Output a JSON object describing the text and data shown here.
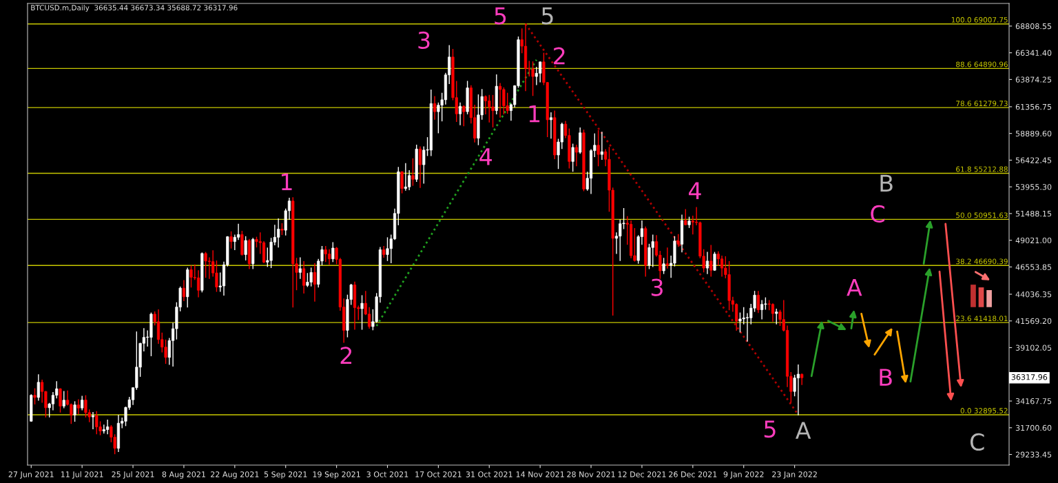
{
  "chart_data": {
    "type": "candlestick",
    "title": "BTCUSD.m,Daily  36635.44 36673.34 35688.72 36317.96",
    "colors": [
      "#ffffff",
      "#ff0000",
      "#ffffff",
      "#ff0000",
      "#ff0000",
      "#ffffff",
      "#ffffff",
      "#ffffff",
      "#ff0000",
      "#ffffff",
      "#ff0000",
      "#ff0000",
      "#ffffff",
      "#ff0000",
      "#ffffff",
      "#ff0000",
      "#ff0000",
      "#ffffff",
      "#ff0000",
      "#ff0000",
      "#ffffff",
      "#ffffff",
      "#ff0000",
      "#ff0000",
      "#ffffff",
      "#ffffff",
      "#ffffff",
      "#ffffff",
      "#ffffff",
      "#ffffff",
      "#ffffff",
      "#ffffff",
      "#ffffff",
      "#ffffff",
      "#ff0000",
      "#ff0000",
      "#ff0000",
      "#ff0000",
      "#ffffff",
      "#ffffff",
      "#ffffff",
      "#ffffff",
      "#ff0000",
      "#ffffff",
      "#ff0000",
      "#ff0000",
      "#ff0000",
      "#ffffff",
      "#ff0000",
      "#ff0000",
      "#ff0000",
      "#ff0000",
      "#ffffff",
      "#ffffff",
      "#ffffff",
      "#ff0000",
      "#ffffff",
      "#ffffff",
      "#ff0000",
      "#ffffff",
      "#ff0000",
      "#ffffff",
      "#ff0000",
      "#ff0000",
      "#ff0000",
      "#ffffff",
      "#ffffff",
      "#ffffff",
      "#ffffff",
      "#ff0000",
      "#ffffff",
      "#ffffff",
      "#ff0000",
      "#ff0000",
      "#ffffff",
      "#ff0000",
      "#ffffff",
      "#ffffff",
      "#ff0000",
      "#ffffff",
      "#ffffff",
      "#ff0000",
      "#ff0000",
      "#ffffff",
      "#ff0000",
      "#ff0000",
      "#ff0000",
      "#ffffff",
      "#ffffff",
      "#ff0000",
      "#ff0000",
      "#ffffff",
      "#ff0000",
      "#ff0000",
      "#ffffff",
      "#ffffff",
      "#ffffff",
      "#ff0000",
      "#ffffff",
      "#ffffff",
      "#ffffff",
      "#ffffff",
      "#ff0000",
      "#ffffff",
      "#ffffff",
      "#ff0000",
      "#ffffff",
      "#ff0000",
      "#ffffff",
      "#ffffff",
      "#ffffff",
      "#ff0000",
      "#ffffff",
      "#ffffff",
      "#ffffff",
      "#ffffff",
      "#ff0000",
      "#ff0000",
      "#ffffff",
      "#ff0000",
      "#ffffff",
      "#ff0000",
      "#ff0000",
      "#ffffff",
      "#ffffff",
      "#ff0000",
      "#ff0000",
      "#ff0000",
      "#ffffff",
      "#ff0000",
      "#ff0000",
      "#ff0000",
      "#ffffff",
      "#ffffff",
      "#ffffff",
      "#ff0000",
      "#ff0000",
      "#ff0000",
      "#ff0000",
      "#ffffff",
      "#ffffff",
      "#ff0000",
      "#ff0000",
      "#ffffff",
      "#ff0000",
      "#ffffff",
      "#ffffff",
      "#ff0000",
      "#ff0000",
      "#ffffff",
      "#ff0000",
      "#ffffff",
      "#ff0000",
      "#ffffff",
      "#ffffff",
      "#ffffff",
      "#ff0000",
      "#ffffff",
      "#ff0000",
      "#ff0000",
      "#ff0000",
      "#ffffff",
      "#ffffff",
      "#ffffff",
      "#ff0000",
      "#ff0000",
      "#ff0000",
      "#ffffff",
      "#ffffff",
      "#ff0000",
      "#ffffff",
      "#ffffff",
      "#ff0000",
      "#ff0000",
      "#ffffff",
      "#ff0000",
      "#ffffff",
      "#ffffff",
      "#ff0000",
      "#ffffff",
      "#ff0000",
      "#ffffff",
      "#ff0000",
      "#ff0000",
      "#ff0000",
      "#ff0000",
      "#ffffff",
      "#ff0000",
      "#ffffff",
      "#ff0000",
      "#ff0000",
      "#ff0000",
      "#ff0000",
      "#ff0000",
      "#ff0000",
      "#ffffff",
      "#ffffff",
      "#ffffff",
      "#ffffff",
      "#ffffff",
      "#ff0000",
      "#ffffff",
      "#ffffff",
      "#ff0000",
      "#ff0000",
      "#ffffff",
      "#ff0000",
      "#ff0000",
      "#ff0000",
      "#ff0000",
      "#ffffff",
      "#ffffff",
      "#ff0000"
    ],
    "x": [
      "2021-06-27",
      "2021-06-28",
      "2021-06-29",
      "2021-06-30",
      "2021-07-01",
      "2021-07-02",
      "2021-07-03",
      "2021-07-04",
      "2021-07-05",
      "2021-07-06",
      "2021-07-07",
      "2021-07-08",
      "2021-07-09",
      "2021-07-10",
      "2021-07-11",
      "2021-07-12",
      "2021-07-13",
      "2021-07-14",
      "2021-07-15",
      "2021-07-16",
      "2021-07-17",
      "2021-07-18",
      "2021-07-19",
      "2021-07-20",
      "2021-07-21",
      "2021-07-22",
      "2021-07-23",
      "2021-07-24",
      "2021-07-25",
      "2021-07-26",
      "2021-07-27",
      "2021-07-28",
      "2021-07-29",
      "2021-07-30",
      "2021-07-31",
      "2021-08-01",
      "2021-08-02",
      "2021-08-03",
      "2021-08-04",
      "2021-08-05",
      "2021-08-06",
      "2021-08-07",
      "2021-08-08",
      "2021-08-09",
      "2021-08-10",
      "2021-08-11",
      "2021-08-12",
      "2021-08-13",
      "2021-08-14",
      "2021-08-15",
      "2021-08-16",
      "2021-08-17",
      "2021-08-18",
      "2021-08-19",
      "2021-08-20",
      "2021-08-21",
      "2021-08-22",
      "2021-08-23",
      "2021-08-24",
      "2021-08-25",
      "2021-08-26",
      "2021-08-27",
      "2021-08-28",
      "2021-08-29",
      "2021-08-30",
      "2021-08-31",
      "2021-09-01",
      "2021-09-02",
      "2021-09-03",
      "2021-09-04",
      "2021-09-05",
      "2021-09-06",
      "2021-09-07",
      "2021-09-08",
      "2021-09-09",
      "2021-09-10",
      "2021-09-11",
      "2021-09-12",
      "2021-09-13",
      "2021-09-14",
      "2021-09-15",
      "2021-09-16",
      "2021-09-17",
      "2021-09-18",
      "2021-09-19",
      "2021-09-20",
      "2021-09-21",
      "2021-09-22",
      "2021-09-23",
      "2021-09-24",
      "2021-09-25",
      "2021-09-26",
      "2021-09-27",
      "2021-09-28",
      "2021-09-29",
      "2021-09-30",
      "2021-10-01",
      "2021-10-02",
      "2021-10-03",
      "2021-10-04",
      "2021-10-05",
      "2021-10-06",
      "2021-10-07",
      "2021-10-08",
      "2021-10-09",
      "2021-10-10",
      "2021-10-11",
      "2021-10-12",
      "2021-10-13",
      "2021-10-14",
      "2021-10-15",
      "2021-10-16",
      "2021-10-17",
      "2021-10-18",
      "2021-10-19",
      "2021-10-20",
      "2021-10-21",
      "2021-10-22",
      "2021-10-23",
      "2021-10-24",
      "2021-10-25",
      "2021-10-26",
      "2021-10-27",
      "2021-10-28",
      "2021-10-29",
      "2021-10-30",
      "2021-10-31",
      "2021-11-01",
      "2021-11-02",
      "2021-11-03",
      "2021-11-04",
      "2021-11-05",
      "2021-11-06",
      "2021-11-07",
      "2021-11-08",
      "2021-11-09",
      "2021-11-10",
      "2021-11-11",
      "2021-11-12",
      "2021-11-13",
      "2021-11-14",
      "2021-11-15",
      "2021-11-16",
      "2021-11-17",
      "2021-11-18",
      "2021-11-19",
      "2021-11-20",
      "2021-11-21",
      "2021-11-22",
      "2021-11-23",
      "2021-11-24",
      "2021-11-25",
      "2021-11-26",
      "2021-11-27",
      "2021-11-28",
      "2021-11-29",
      "2021-11-30",
      "2021-12-01",
      "2021-12-02",
      "2021-12-03",
      "2021-12-04",
      "2021-12-05",
      "2021-12-06",
      "2021-12-07",
      "2021-12-08",
      "2021-12-09",
      "2021-12-10",
      "2021-12-11",
      "2021-12-12",
      "2021-12-13",
      "2021-12-14",
      "2021-12-15",
      "2021-12-16",
      "2021-12-17",
      "2021-12-18",
      "2021-12-19",
      "2021-12-20",
      "2021-12-21",
      "2021-12-22",
      "2021-12-23",
      "2021-12-24",
      "2021-12-25",
      "2021-12-26",
      "2021-12-27",
      "2021-12-28",
      "2021-12-29",
      "2021-12-30",
      "2021-12-31",
      "2022-01-01",
      "2022-01-02",
      "2022-01-03",
      "2022-01-04",
      "2022-01-05",
      "2022-01-06",
      "2022-01-07",
      "2022-01-08",
      "2022-01-09",
      "2022-01-10",
      "2022-01-11",
      "2022-01-12",
      "2022-01-13",
      "2022-01-14",
      "2022-01-15",
      "2022-01-16",
      "2022-01-17",
      "2022-01-18",
      "2022-01-19",
      "2022-01-20",
      "2022-01-21",
      "2022-01-22",
      "2022-01-23",
      "2022-01-24",
      "2022-01-25"
    ],
    "ohlc": [
      [
        32300,
        34750,
        32300,
        34700
      ],
      [
        34700,
        35300,
        33900,
        34500
      ],
      [
        34500,
        36600,
        34250,
        35900
      ],
      [
        35900,
        36100,
        34050,
        35050
      ],
      [
        35050,
        35050,
        32700,
        33550
      ],
      [
        33550,
        33950,
        32700,
        33900
      ],
      [
        33900,
        34950,
        33350,
        34700
      ],
      [
        34700,
        35950,
        34450,
        35300
      ],
      [
        35300,
        35300,
        33150,
        33700
      ],
      [
        33700,
        35050,
        33550,
        34250
      ],
      [
        34250,
        35100,
        33800,
        33850
      ],
      [
        33850,
        33900,
        32100,
        32880
      ],
      [
        32880,
        34100,
        32300,
        33810
      ],
      [
        33810,
        34280,
        33000,
        33520
      ],
      [
        33520,
        34600,
        33350,
        34260
      ],
      [
        34260,
        34660,
        32700,
        33100
      ],
      [
        33100,
        33350,
        32250,
        32700
      ],
      [
        32700,
        33100,
        31600,
        32820
      ],
      [
        32820,
        33180,
        31150,
        31780
      ],
      [
        31780,
        32250,
        31050,
        31400
      ],
      [
        31400,
        31950,
        31200,
        31530
      ],
      [
        31530,
        32400,
        31150,
        31790
      ],
      [
        31790,
        31900,
        30400,
        30830
      ],
      [
        30830,
        31050,
        29300,
        29800
      ],
      [
        29800,
        32850,
        29500,
        32120
      ],
      [
        32120,
        32600,
        31700,
        32300
      ],
      [
        32300,
        33600,
        31900,
        33580
      ],
      [
        33580,
        34500,
        33400,
        34280
      ],
      [
        34280,
        35400,
        33850,
        35400
      ],
      [
        35400,
        40550,
        35250,
        37300
      ],
      [
        37300,
        39500,
        36450,
        39500
      ],
      [
        39500,
        40850,
        38800,
        40050
      ],
      [
        40050,
        40650,
        39250,
        40050
      ],
      [
        40050,
        42300,
        38350,
        42200
      ],
      [
        42200,
        42400,
        41200,
        41500
      ],
      [
        41500,
        42600,
        39500,
        39850
      ],
      [
        39850,
        40450,
        38700,
        39150
      ],
      [
        39150,
        39800,
        37650,
        38200
      ],
      [
        38200,
        39950,
        37550,
        39750
      ],
      [
        39750,
        41350,
        37400,
        40850
      ],
      [
        40850,
        43250,
        39900,
        42850
      ],
      [
        42850,
        44700,
        42500,
        44600
      ],
      [
        44600,
        45300,
        43450,
        43800
      ],
      [
        43800,
        46450,
        42850,
        46300
      ],
      [
        46300,
        46650,
        44700,
        45600
      ],
      [
        45600,
        46750,
        45400,
        45550
      ],
      [
        45550,
        46200,
        43800,
        44400
      ],
      [
        44400,
        47850,
        44250,
        47800
      ],
      [
        47800,
        47900,
        45600,
        47100
      ],
      [
        47100,
        47400,
        45500,
        47050
      ],
      [
        47050,
        48050,
        45700,
        46000
      ],
      [
        46000,
        47100,
        44300,
        44700
      ],
      [
        44700,
        46000,
        44300,
        44800
      ],
      [
        44800,
        47000,
        43950,
        46750
      ],
      [
        46750,
        49350,
        46650,
        49350
      ],
      [
        49350,
        49800,
        48300,
        48900
      ],
      [
        48900,
        49500,
        48150,
        49300
      ],
      [
        49300,
        50500,
        49100,
        49550
      ],
      [
        49550,
        49850,
        47650,
        47700
      ],
      [
        47700,
        49350,
        47200,
        49000
      ],
      [
        49000,
        49100,
        46400,
        46850
      ],
      [
        46850,
        49200,
        46400,
        49100
      ],
      [
        49100,
        49300,
        48400,
        48900
      ],
      [
        48900,
        49700,
        47800,
        48800
      ],
      [
        48800,
        48900,
        46950,
        47000
      ],
      [
        47000,
        48300,
        46600,
        47150
      ],
      [
        47150,
        49200,
        46500,
        48850
      ],
      [
        48850,
        50400,
        48600,
        49300
      ],
      [
        49300,
        51000,
        48400,
        50050
      ],
      [
        50050,
        50550,
        49550,
        49950
      ],
      [
        49950,
        51900,
        49500,
        51750
      ],
      [
        51750,
        52900,
        50950,
        52650
      ],
      [
        52650,
        52950,
        42850,
        46850
      ],
      [
        46850,
        47350,
        44450,
        46050
      ],
      [
        46050,
        47400,
        45500,
        46400
      ],
      [
        46400,
        47050,
        44150,
        44850
      ],
      [
        44850,
        45950,
        44750,
        45150
      ],
      [
        45150,
        46450,
        44800,
        46050
      ],
      [
        46050,
        46850,
        43400,
        44950
      ],
      [
        44950,
        47250,
        44700,
        47100
      ],
      [
        47100,
        48450,
        46750,
        48150
      ],
      [
        48150,
        48450,
        47050,
        47750
      ],
      [
        47750,
        48150,
        46800,
        47300
      ],
      [
        47300,
        48800,
        47050,
        48300
      ],
      [
        48300,
        48350,
        46850,
        47250
      ],
      [
        47250,
        47350,
        42550,
        42850
      ],
      [
        42850,
        43600,
        39600,
        40700
      ],
      [
        40700,
        43950,
        40100,
        43550
      ],
      [
        43550,
        44950,
        43100,
        44900
      ],
      [
        44900,
        45150,
        40800,
        42800
      ],
      [
        42800,
        42950,
        41700,
        42700
      ],
      [
        42700,
        43900,
        40800,
        43200
      ],
      [
        43200,
        44300,
        42150,
        42200
      ],
      [
        42200,
        42800,
        40900,
        41050
      ],
      [
        41050,
        42600,
        40750,
        41500
      ],
      [
        41500,
        44100,
        41450,
        43800
      ],
      [
        43800,
        48350,
        43300,
        48150
      ],
      [
        48150,
        48450,
        47450,
        47700
      ],
      [
        47700,
        49250,
        47150,
        48250
      ],
      [
        48250,
        49500,
        46950,
        49150
      ],
      [
        49150,
        51900,
        49100,
        51500
      ],
      [
        51500,
        55750,
        50450,
        55350
      ],
      [
        55350,
        55350,
        53400,
        53800
      ],
      [
        53800,
        56100,
        53650,
        53950
      ],
      [
        53950,
        55450,
        53700,
        55000
      ],
      [
        55000,
        56550,
        54100,
        54650
      ],
      [
        54650,
        57800,
        54450,
        57450
      ],
      [
        57450,
        57650,
        53900,
        56000
      ],
      [
        56000,
        57650,
        54300,
        57350
      ],
      [
        57350,
        58500,
        56850,
        57350
      ],
      [
        57350,
        62900,
        56850,
        61650
      ],
      [
        61650,
        62300,
        60200,
        60900
      ],
      [
        60900,
        61700,
        58950,
        61500
      ],
      [
        61500,
        62600,
        60050,
        62000
      ],
      [
        62000,
        64450,
        61600,
        64300
      ],
      [
        64300,
        67000,
        63500,
        65950
      ],
      [
        65950,
        66650,
        62000,
        62200
      ],
      [
        62200,
        63700,
        60000,
        60700
      ],
      [
        60700,
        61700,
        59700,
        61400
      ],
      [
        61400,
        61450,
        59600,
        60900
      ],
      [
        60900,
        63700,
        60700,
        63100
      ],
      [
        63100,
        63300,
        59850,
        60350
      ],
      [
        60350,
        61500,
        58100,
        58450
      ],
      [
        58450,
        62450,
        57850,
        60600
      ],
      [
        60600,
        62950,
        60200,
        62300
      ],
      [
        62300,
        62350,
        60700,
        61900
      ],
      [
        61900,
        62400,
        59950,
        61350
      ],
      [
        61350,
        62400,
        59500,
        61000
      ],
      [
        61000,
        64300,
        60700,
        63250
      ],
      [
        63250,
        63500,
        60400,
        62950
      ],
      [
        62950,
        63100,
        60700,
        61450
      ],
      [
        61450,
        62600,
        60750,
        61000
      ],
      [
        61000,
        61600,
        60100,
        61550
      ],
      [
        61550,
        63300,
        61350,
        63300
      ],
      [
        63300,
        67800,
        63150,
        67550
      ],
      [
        67550,
        68550,
        66350,
        66950
      ],
      [
        66950,
        69000,
        62850,
        64900
      ],
      [
        64900,
        65550,
        64200,
        64850
      ],
      [
        64850,
        65500,
        62400,
        64150
      ],
      [
        64150,
        65000,
        63400,
        64450
      ],
      [
        64450,
        65500,
        63650,
        65500
      ],
      [
        65500,
        66300,
        63400,
        63600
      ],
      [
        63600,
        63600,
        58600,
        60150
      ],
      [
        60150,
        60800,
        58450,
        60350
      ],
      [
        60350,
        60950,
        56550,
        56900
      ],
      [
        56900,
        58350,
        55650,
        58100
      ],
      [
        58100,
        59850,
        57500,
        59750
      ],
      [
        59750,
        60000,
        58500,
        58700
      ],
      [
        58700,
        59300,
        55700,
        56300
      ],
      [
        56300,
        57900,
        55400,
        57600
      ],
      [
        57600,
        57800,
        55900,
        57150
      ],
      [
        57150,
        59400,
        57050,
        58950
      ],
      [
        58950,
        59200,
        53600,
        53750
      ],
      [
        53750,
        55300,
        53650,
        54750
      ],
      [
        54750,
        57400,
        53350,
        57300
      ],
      [
        57300,
        58850,
        56750,
        57800
      ],
      [
        57800,
        59150,
        55900,
        56950
      ],
      [
        56950,
        59000,
        56500,
        57200
      ],
      [
        57200,
        57400,
        55900,
        56500
      ],
      [
        56500,
        57600,
        51700,
        53650
      ],
      [
        53650,
        53850,
        42100,
        49200
      ],
      [
        49200,
        49700,
        47800,
        49400
      ],
      [
        49400,
        50900,
        47150,
        50550
      ],
      [
        50550,
        51950,
        50100,
        50600
      ],
      [
        50600,
        51200,
        48650,
        50500
      ],
      [
        50500,
        50800,
        47400,
        47600
      ],
      [
        47600,
        50100,
        47100,
        47150
      ],
      [
        47150,
        49450,
        46900,
        49350
      ],
      [
        49350,
        50800,
        48650,
        50100
      ],
      [
        50100,
        50250,
        45700,
        46700
      ],
      [
        46700,
        48650,
        46400,
        48350
      ],
      [
        48350,
        49500,
        46600,
        48900
      ],
      [
        48900,
        49450,
        47550,
        47650
      ],
      [
        47650,
        48000,
        45500,
        46200
      ],
      [
        46200,
        47350,
        45950,
        46850
      ],
      [
        46850,
        48300,
        46450,
        46700
      ],
      [
        46700,
        47550,
        45600,
        46900
      ],
      [
        46900,
        49350,
        46650,
        48950
      ],
      [
        48950,
        49550,
        48450,
        48650
      ],
      [
        48650,
        51350,
        47950,
        50850
      ],
      [
        50850,
        51850,
        50450,
        50450
      ],
      [
        50450,
        51150,
        50200,
        50800
      ],
      [
        50800,
        51250,
        49600,
        50700
      ],
      [
        50700,
        52050,
        50450,
        50650
      ],
      [
        50650,
        50700,
        47400,
        47550
      ],
      [
        47550,
        48150,
        46100,
        46450
      ],
      [
        46450,
        47900,
        45950,
        47100
      ],
      [
        47100,
        48550,
        45700,
        46250
      ],
      [
        46250,
        47900,
        46250,
        47750
      ],
      [
        47750,
        47950,
        46700,
        47300
      ],
      [
        47300,
        47550,
        45700,
        46450
      ],
      [
        46450,
        47500,
        45550,
        45850
      ],
      [
        45850,
        47050,
        42600,
        43450
      ],
      [
        43450,
        43750,
        42450,
        43100
      ],
      [
        43100,
        43150,
        40700,
        41550
      ],
      [
        41550,
        42300,
        40550,
        41750
      ],
      [
        41750,
        42800,
        41300,
        41850
      ],
      [
        41850,
        42250,
        39700,
        41850
      ],
      [
        41850,
        43100,
        41300,
        42750
      ],
      [
        42750,
        44300,
        42450,
        43950
      ],
      [
        43950,
        44300,
        42350,
        42600
      ],
      [
        42600,
        43450,
        41750,
        43100
      ],
      [
        43100,
        43700,
        42650,
        43150
      ],
      [
        43150,
        43450,
        42600,
        43100
      ],
      [
        43100,
        43150,
        41550,
        42250
      ],
      [
        42250,
        42650,
        41300,
        42400
      ],
      [
        42400,
        42550,
        41150,
        41700
      ],
      [
        41700,
        43450,
        40650,
        40700
      ],
      [
        40700,
        41100,
        35500,
        36450
      ],
      [
        36450,
        36800,
        34050,
        35050
      ],
      [
        35050,
        36550,
        34650,
        36300
      ],
      [
        36300,
        37500,
        32900,
        36650
      ],
      [
        36635.44,
        36673.34,
        35688.72,
        36317.96
      ]
    ],
    "series": [
      {
        "type": "line",
        "x": [
          "2021-09-30",
          "2021-11-13"
        ],
        "values": [
          41100,
          65700
        ],
        "color": "#1fa01f",
        "line_style": "dotted"
      },
      {
        "type": "line",
        "x": [
          "2021-11-10",
          "2022-01-24"
        ],
        "values": [
          69000,
          32900
        ],
        "color": "#b00000",
        "line_style": "dotted"
      }
    ],
    "xlim": [
      "2021-06-26",
      "2022-03-23"
    ],
    "xticks": [
      {
        "value": "2021-06-27",
        "label": "27 Jun 2021"
      },
      {
        "value": "2021-07-11",
        "label": "11 Jul 2021"
      },
      {
        "value": "2021-07-25",
        "label": "25 Jul 2021"
      },
      {
        "value": "2021-08-08",
        "label": "8 Aug 2021"
      },
      {
        "value": "2021-08-22",
        "label": "22 Aug 2021"
      },
      {
        "value": "2021-09-05",
        "label": "5 Sep 2021"
      },
      {
        "value": "2021-09-19",
        "label": "19 Sep 2021"
      },
      {
        "value": "2021-10-03",
        "label": "3 Oct 2021"
      },
      {
        "value": "2021-10-17",
        "label": "17 Oct 2021"
      },
      {
        "value": "2021-10-31",
        "label": "31 Oct 2021"
      },
      {
        "value": "2021-11-14",
        "label": "14 Nov 2021"
      },
      {
        "value": "2021-11-28",
        "label": "28 Nov 2021"
      },
      {
        "value": "2021-12-12",
        "label": "12 Dec 2021"
      },
      {
        "value": "2021-12-26",
        "label": "26 Dec 2021"
      },
      {
        "value": "2022-01-09",
        "label": "9 Jan 2022"
      },
      {
        "value": "2022-01-23",
        "label": "23 Jan 2022"
      }
    ],
    "ylim": [
      28250,
      70900
    ],
    "yticks": [
      {
        "value": 29233.45,
        "label": "29233.45"
      },
      {
        "value": 31700.6,
        "label": "31700.60"
      },
      {
        "value": 34167.75,
        "label": "34167.75"
      },
      {
        "value": 36634.9,
        "label": null
      },
      {
        "value": 39102.05,
        "label": "39102.05"
      },
      {
        "value": 41569.2,
        "label": "41569.20"
      },
      {
        "value": 44036.35,
        "label": "44036.35"
      },
      {
        "value": 46553.85,
        "label": "46553.85"
      },
      {
        "value": 49021.0,
        "label": "49021.00"
      },
      {
        "value": 51488.15,
        "label": "51488.15"
      },
      {
        "value": 53955.3,
        "label": "53955.30"
      },
      {
        "value": 56422.45,
        "label": "56422.45"
      },
      {
        "value": 58889.6,
        "label": "58889.60"
      },
      {
        "value": 61356.75,
        "label": "61356.75"
      },
      {
        "value": 63874.25,
        "label": "63874.25"
      },
      {
        "value": 66341.4,
        "label": "66341.40"
      },
      {
        "value": 68808.55,
        "label": "68808.55"
      }
    ],
    "ref_lines": [
      {
        "axis": "y",
        "value": 69007.75,
        "label": "100.0 69007.75",
        "color": "#c8c800"
      },
      {
        "axis": "y",
        "value": 64890.96,
        "label": "88.6 64890.96",
        "color": "#c8c800"
      },
      {
        "axis": "y",
        "value": 61279.73,
        "label": "78.6 61279.73",
        "color": "#c8c800"
      },
      {
        "axis": "y",
        "value": 55212.88,
        "label": "61.8 55212.88",
        "color": "#c8c800"
      },
      {
        "axis": "y",
        "value": 50951.63,
        "label": "50.0 50951.63",
        "color": "#c8c800"
      },
      {
        "axis": "y",
        "value": 46690.39,
        "label": "38.2 46690.39",
        "color": "#c8c800"
      },
      {
        "axis": "y",
        "value": 41418.01,
        "label": "23.6 41418.01",
        "color": "#c8c800"
      },
      {
        "axis": "y",
        "value": 32895.52,
        "label": "0.0 32895.52",
        "color": "#c8c800"
      }
    ],
    "annotations": [
      "1",
      "2",
      "3",
      "4",
      "5",
      "5",
      "1",
      "2",
      "3",
      "4",
      "5",
      "A",
      "A",
      "B",
      "C",
      "B",
      "C",
      "36317.96"
    ]
  }
}
